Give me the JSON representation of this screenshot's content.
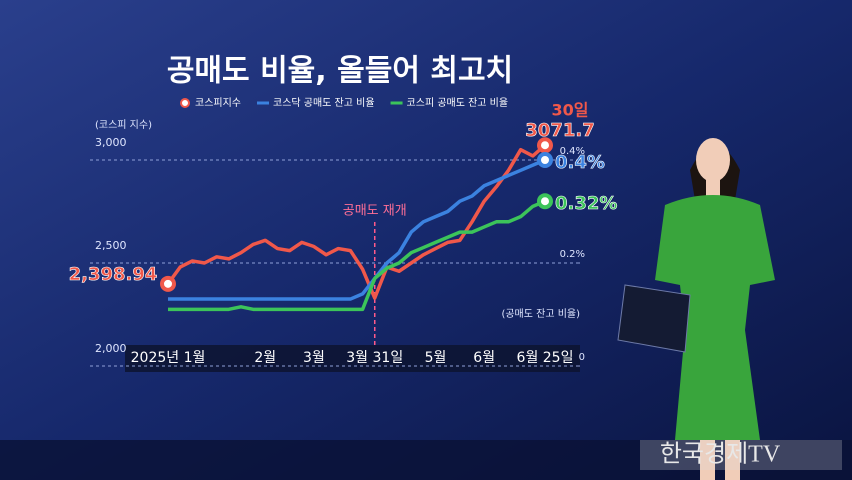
{
  "chart_data": {
    "type": "line",
    "title": "공매도 비율, 올들어 최고치",
    "ylabel": "(코스피 지수)",
    "y2label": "(공매도 잔고 비율)",
    "x": [
      "2025년 1월",
      null,
      null,
      null,
      null,
      null,
      null,
      null,
      "2월",
      null,
      null,
      null,
      "3월",
      null,
      null,
      null,
      null,
      "3월 31일",
      null,
      null,
      null,
      null,
      "5월",
      null,
      null,
      null,
      "6월",
      null,
      null,
      null,
      null,
      "6월 25일"
    ],
    "series": [
      {
        "name": "코스피지수",
        "color": "#f0584a",
        "values": [
          2398.94,
          2480,
          2510,
          2500,
          2530,
          2520,
          2550,
          2590,
          2610,
          2570,
          2560,
          2600,
          2580,
          2540,
          2570,
          2560,
          2470,
          2330,
          2480,
          2460,
          2500,
          2540,
          2570,
          2600,
          2610,
          2700,
          2800,
          2870,
          2950,
          3050,
          3020,
          3071.7
        ],
        "value_labels": [
          "2,398.94",
          null,
          null,
          null,
          null,
          null,
          null,
          null,
          null,
          null,
          null,
          null,
          null,
          null,
          null,
          null,
          null,
          null,
          null,
          null,
          null,
          null,
          null,
          null,
          null,
          null,
          null,
          null,
          null,
          null,
          null,
          "3071.7"
        ]
      },
      {
        "name": "코스닥 공매도 잔고 비율",
        "color": "#3b82e0",
        "axis": "y2",
        "values": [
          0.13,
          0.13,
          0.13,
          0.13,
          0.13,
          0.13,
          0.13,
          0.13,
          0.13,
          0.13,
          0.13,
          0.13,
          0.13,
          0.13,
          0.13,
          0.13,
          0.14,
          0.17,
          0.2,
          0.22,
          0.26,
          0.28,
          0.29,
          0.3,
          0.32,
          0.33,
          0.35,
          0.36,
          0.37,
          0.38,
          0.39,
          0.4
        ],
        "value_labels": [
          null,
          null,
          null,
          null,
          null,
          null,
          null,
          null,
          null,
          null,
          null,
          null,
          null,
          null,
          null,
          null,
          null,
          null,
          null,
          null,
          null,
          null,
          null,
          null,
          null,
          null,
          null,
          null,
          null,
          null,
          null,
          "0.4%"
        ]
      },
      {
        "name": "코스피 공매도 잔고 비율",
        "color": "#3cc45a",
        "axis": "y2",
        "values": [
          0.11,
          0.11,
          0.11,
          0.11,
          0.11,
          0.11,
          0.115,
          0.11,
          0.11,
          0.11,
          0.11,
          0.11,
          0.11,
          0.11,
          0.11,
          0.11,
          0.11,
          0.17,
          0.19,
          0.2,
          0.22,
          0.23,
          0.24,
          0.25,
          0.26,
          0.26,
          0.27,
          0.28,
          0.28,
          0.29,
          0.31,
          0.32
        ],
        "value_labels": [
          null,
          null,
          null,
          null,
          null,
          null,
          null,
          null,
          null,
          null,
          null,
          null,
          null,
          null,
          null,
          null,
          null,
          null,
          null,
          null,
          null,
          null,
          null,
          null,
          null,
          null,
          null,
          null,
          null,
          null,
          null,
          "0.32%"
        ]
      }
    ],
    "ylim": [
      2000,
      3000
    ],
    "yticks": [
      {
        "value": 2000,
        "label": "2,000"
      },
      {
        "value": 2500,
        "label": "2,500"
      },
      {
        "value": 3000,
        "label": "3,000"
      }
    ],
    "y2lim": [
      0,
      0.4
    ],
    "y2ticks": [
      0,
      {
        "value": 0.2,
        "label": "0.2%"
      },
      {
        "value": 0.4,
        "label": "0.4%"
      }
    ],
    "annotation": {
      "text": "공매도 재개",
      "x": "3월 31일"
    },
    "end_note": "30일"
  },
  "logo": "한국경제TV"
}
